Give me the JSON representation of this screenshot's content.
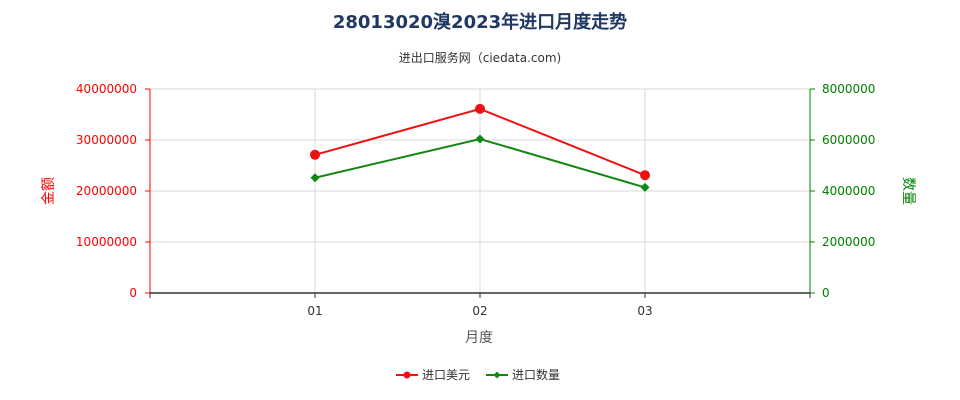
{
  "chart_data": {
    "type": "line",
    "title": "28013020溴2023年进口月度走势",
    "subtitle": "进出口服务网（ciedata.com)",
    "xlabel": "月度",
    "ylabel_left": "金额",
    "ylabel_right": "数量",
    "categories": [
      "01",
      "02",
      "03"
    ],
    "y_left": {
      "range": [
        0,
        40000000
      ],
      "ticks": [
        "0",
        "10000000",
        "20000000",
        "30000000",
        "40000000"
      ],
      "color": "#ff0000"
    },
    "y_right": {
      "range": [
        0,
        8000000
      ],
      "ticks": [
        "0",
        "2000000",
        "4000000",
        "6000000",
        "8000000"
      ],
      "color": "#008000"
    },
    "series": [
      {
        "name": "进口美元",
        "axis": "left",
        "color": "#ee1111",
        "marker": "circle",
        "values": [
          27100000,
          36100000,
          23100000
        ]
      },
      {
        "name": "进口数量",
        "axis": "right",
        "color": "#118811",
        "marker": "diamond",
        "values": [
          4520000,
          6040000,
          4140000
        ]
      }
    ],
    "grid": true,
    "legend_position": "bottom-center"
  }
}
